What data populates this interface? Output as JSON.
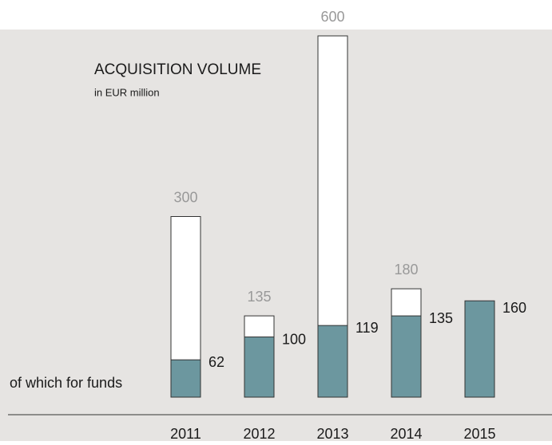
{
  "chart_data": {
    "type": "bar",
    "title": "ACQUISITION VOLUME",
    "subtitle": "in EUR million",
    "categories": [
      "2011",
      "2012",
      "2013",
      "2014",
      "2015"
    ],
    "series": [
      {
        "color": "#ffffff",
        "values": [
          300,
          135,
          600,
          180,
          null
        ]
      },
      {
        "name": "of which for funds",
        "color": "#6c979f",
        "values": [
          62,
          100,
          119,
          135,
          160
        ]
      }
    ]
  }
}
